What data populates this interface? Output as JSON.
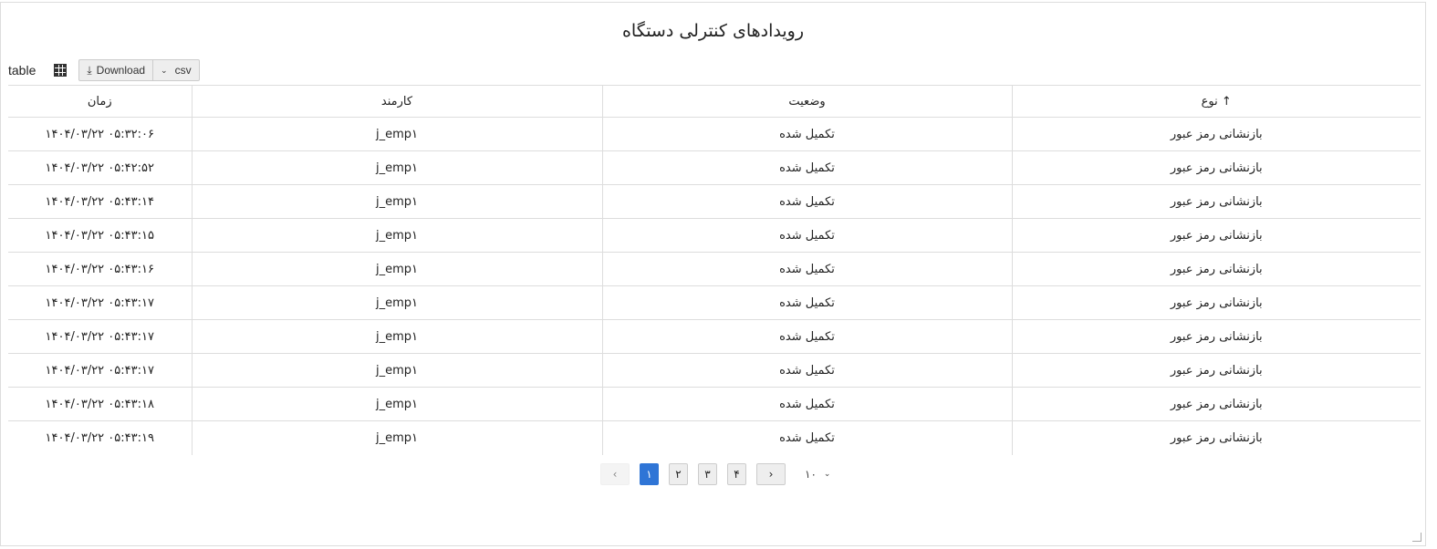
{
  "title": "رویدادهای کنترلی دستگاه",
  "toolbar": {
    "view_label": "table",
    "download_label": "Download",
    "format": "csv"
  },
  "table": {
    "columns": [
      "نوع",
      "وضعیت",
      "کارمند",
      "زمان"
    ],
    "sort": {
      "column": "نوع",
      "direction": "asc"
    },
    "rows": [
      [
        "بازنشانی رمز عبور",
        "تکمیل شده",
        "j_emp۱",
        "۱۴۰۴/۰۳/۲۲ ۰۵:۳۲:۰۶"
      ],
      [
        "بازنشانی رمز عبور",
        "تکمیل شده",
        "j_emp۱",
        "۱۴۰۴/۰۳/۲۲ ۰۵:۴۲:۵۲"
      ],
      [
        "بازنشانی رمز عبور",
        "تکمیل شده",
        "j_emp۱",
        "۱۴۰۴/۰۳/۲۲ ۰۵:۴۳:۱۴"
      ],
      [
        "بازنشانی رمز عبور",
        "تکمیل شده",
        "j_emp۱",
        "۱۴۰۴/۰۳/۲۲ ۰۵:۴۳:۱۵"
      ],
      [
        "بازنشانی رمز عبور",
        "تکمیل شده",
        "j_emp۱",
        "۱۴۰۴/۰۳/۲۲ ۰۵:۴۳:۱۶"
      ],
      [
        "بازنشانی رمز عبور",
        "تکمیل شده",
        "j_emp۱",
        "۱۴۰۴/۰۳/۲۲ ۰۵:۴۳:۱۷"
      ],
      [
        "بازنشانی رمز عبور",
        "تکمیل شده",
        "j_emp۱",
        "۱۴۰۴/۰۳/۲۲ ۰۵:۴۳:۱۷"
      ],
      [
        "بازنشانی رمز عبور",
        "تکمیل شده",
        "j_emp۱",
        "۱۴۰۴/۰۳/۲۲ ۰۵:۴۳:۱۷"
      ],
      [
        "بازنشانی رمز عبور",
        "تکمیل شده",
        "j_emp۱",
        "۱۴۰۴/۰۳/۲۲ ۰۵:۴۳:۱۸"
      ],
      [
        "بازنشانی رمز عبور",
        "تکمیل شده",
        "j_emp۱",
        "۱۴۰۴/۰۳/۲۲ ۰۵:۴۳:۱۹"
      ]
    ]
  },
  "pagination": {
    "pages": [
      "۱",
      "۲",
      "۳",
      "۴"
    ],
    "current": "۱",
    "page_size": "۱۰",
    "prev": "‹",
    "next": "›"
  },
  "colors": {
    "accent": "#2f75d6"
  }
}
